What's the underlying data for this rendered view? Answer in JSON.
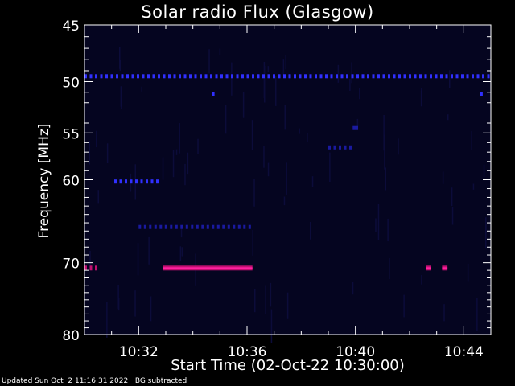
{
  "chart_data": {
    "type": "heatmap",
    "title": "Solar radio Flux (Glasgow)",
    "xlabel": "Start Time (02-Oct-22 10:30:00)",
    "ylabel": "Frequency [MHz]",
    "x_ticks": [
      "10:32",
      "10:36",
      "10:40",
      "10:44"
    ],
    "x_tick_minutes": [
      2,
      6,
      10,
      14
    ],
    "xlim_minutes": [
      0,
      15
    ],
    "y_ticks": [
      45,
      50,
      55,
      60,
      70,
      80
    ],
    "ylim_mhz": [
      45,
      80
    ],
    "y_scale": "log",
    "grid": false,
    "colors": {
      "background": "#000000",
      "plot_bg": "#050520",
      "weak": "#1a1aa0",
      "medium": "#3030ff",
      "strong": "#c01070",
      "peak": "#ff20a0"
    },
    "features": [
      {
        "name": "band-49.5",
        "freq_mhz": 49.5,
        "start_min": 0.0,
        "end_min": 15.0,
        "intensity": "medium",
        "pattern": "dashed"
      },
      {
        "name": "band-60.2",
        "freq_mhz": 60.2,
        "start_min": 1.1,
        "end_min": 2.7,
        "intensity": "medium",
        "pattern": "dashed"
      },
      {
        "name": "band-65.5",
        "freq_mhz": 65.5,
        "start_min": 2.0,
        "end_min": 6.2,
        "intensity": "weak",
        "pattern": "dashed"
      },
      {
        "name": "band-70.7-a",
        "freq_mhz": 70.7,
        "start_min": 0.0,
        "end_min": 0.5,
        "intensity": "strong",
        "pattern": "dashed"
      },
      {
        "name": "band-70.7-b",
        "freq_mhz": 70.7,
        "start_min": 2.9,
        "end_min": 6.2,
        "intensity": "strong",
        "pattern": "solid"
      },
      {
        "name": "dot-70.7-c",
        "freq_mhz": 70.7,
        "start_min": 12.6,
        "end_min": 12.8,
        "intensity": "strong",
        "pattern": "solid"
      },
      {
        "name": "dot-70.7-d",
        "freq_mhz": 70.7,
        "start_min": 13.2,
        "end_min": 13.4,
        "intensity": "strong",
        "pattern": "solid"
      },
      {
        "name": "band-56.5",
        "freq_mhz": 56.5,
        "start_min": 9.0,
        "end_min": 9.8,
        "intensity": "weak",
        "pattern": "dashed"
      },
      {
        "name": "dot-54.5",
        "freq_mhz": 54.5,
        "start_min": 9.9,
        "end_min": 10.1,
        "intensity": "weak",
        "pattern": "solid"
      },
      {
        "name": "dot-51.2-a",
        "freq_mhz": 51.2,
        "start_min": 4.7,
        "end_min": 4.8,
        "intensity": "medium",
        "pattern": "solid"
      },
      {
        "name": "dot-51.2-b",
        "freq_mhz": 51.2,
        "start_min": 14.6,
        "end_min": 14.7,
        "intensity": "medium",
        "pattern": "solid"
      }
    ]
  },
  "footer": {
    "updated": "Updated Sun Oct  2 11:16:31 2022",
    "bg_note": "BG subtracted"
  }
}
